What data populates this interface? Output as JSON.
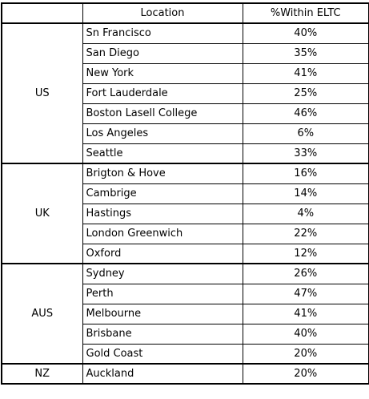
{
  "header": {
    "location": "Location",
    "share": "%Within ELTC"
  },
  "groups": [
    {
      "country": "US",
      "rows": [
        [
          "Sn Francisco",
          "40%"
        ],
        [
          "San Diego",
          "35%"
        ],
        [
          "New York",
          "41%"
        ],
        [
          "Fort Lauderdale",
          "25%"
        ],
        [
          "Boston Lasell College",
          "46%"
        ],
        [
          "Los Angeles",
          "6%"
        ],
        [
          "Seattle",
          "33%"
        ]
      ]
    },
    {
      "country": "UK",
      "rows": [
        [
          "Brigton & Hove",
          "16%"
        ],
        [
          "Cambrige",
          "14%"
        ],
        [
          "Hastings",
          "4%"
        ],
        [
          "London Greenwich",
          "22%"
        ],
        [
          "Oxford",
          "12%"
        ]
      ]
    },
    {
      "country": "AUS",
      "rows": [
        [
          "Sydney",
          "26%"
        ],
        [
          "Perth",
          "47%"
        ],
        [
          "Melbourne",
          "41%"
        ],
        [
          "Brisbane",
          "40%"
        ],
        [
          "Gold Coast",
          "20%"
        ]
      ]
    },
    {
      "country": "NZ",
      "rows": [
        [
          "Auckland",
          "20%"
        ]
      ]
    }
  ]
}
